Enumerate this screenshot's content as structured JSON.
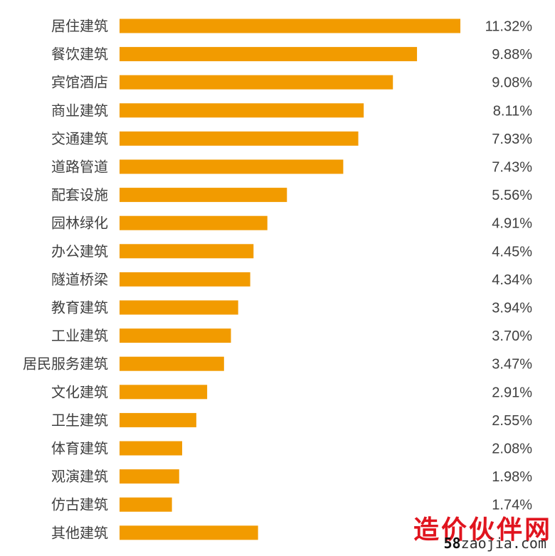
{
  "chart_data": {
    "type": "bar",
    "orientation": "horizontal",
    "categories": [
      "居住建筑",
      "餐饮建筑",
      "宾馆酒店",
      "商业建筑",
      "交通建筑",
      "道路管道",
      "配套设施",
      "园林绿化",
      "办公建筑",
      "隧道桥梁",
      "教育建筑",
      "工业建筑",
      "居民服务建筑",
      "文化建筑",
      "卫生建筑",
      "体育建筑",
      "观演建筑",
      "仿古建筑",
      "其他建筑"
    ],
    "values": [
      11.32,
      9.88,
      9.08,
      8.11,
      7.93,
      7.43,
      5.56,
      4.91,
      4.45,
      4.34,
      3.94,
      3.7,
      3.47,
      2.91,
      2.55,
      2.08,
      1.98,
      1.74,
      4.6
    ],
    "value_labels": [
      "11.32%",
      "9.88%",
      "9.08%",
      "8.11%",
      "7.93%",
      "7.43%",
      "5.56%",
      "4.91%",
      "4.45%",
      "4.34%",
      "3.94%",
      "3.70%",
      "3.47%",
      "2.91%",
      "2.55%",
      "2.08%",
      "1.98%",
      "1.74%",
      ""
    ],
    "xlim": [
      0,
      11.32
    ],
    "color": "#f29b00",
    "grid": false,
    "legend": "none"
  },
  "watermark": {
    "chinese": "造价伙伴网",
    "url_number": "58",
    "url_rest": "zaojia.com"
  }
}
